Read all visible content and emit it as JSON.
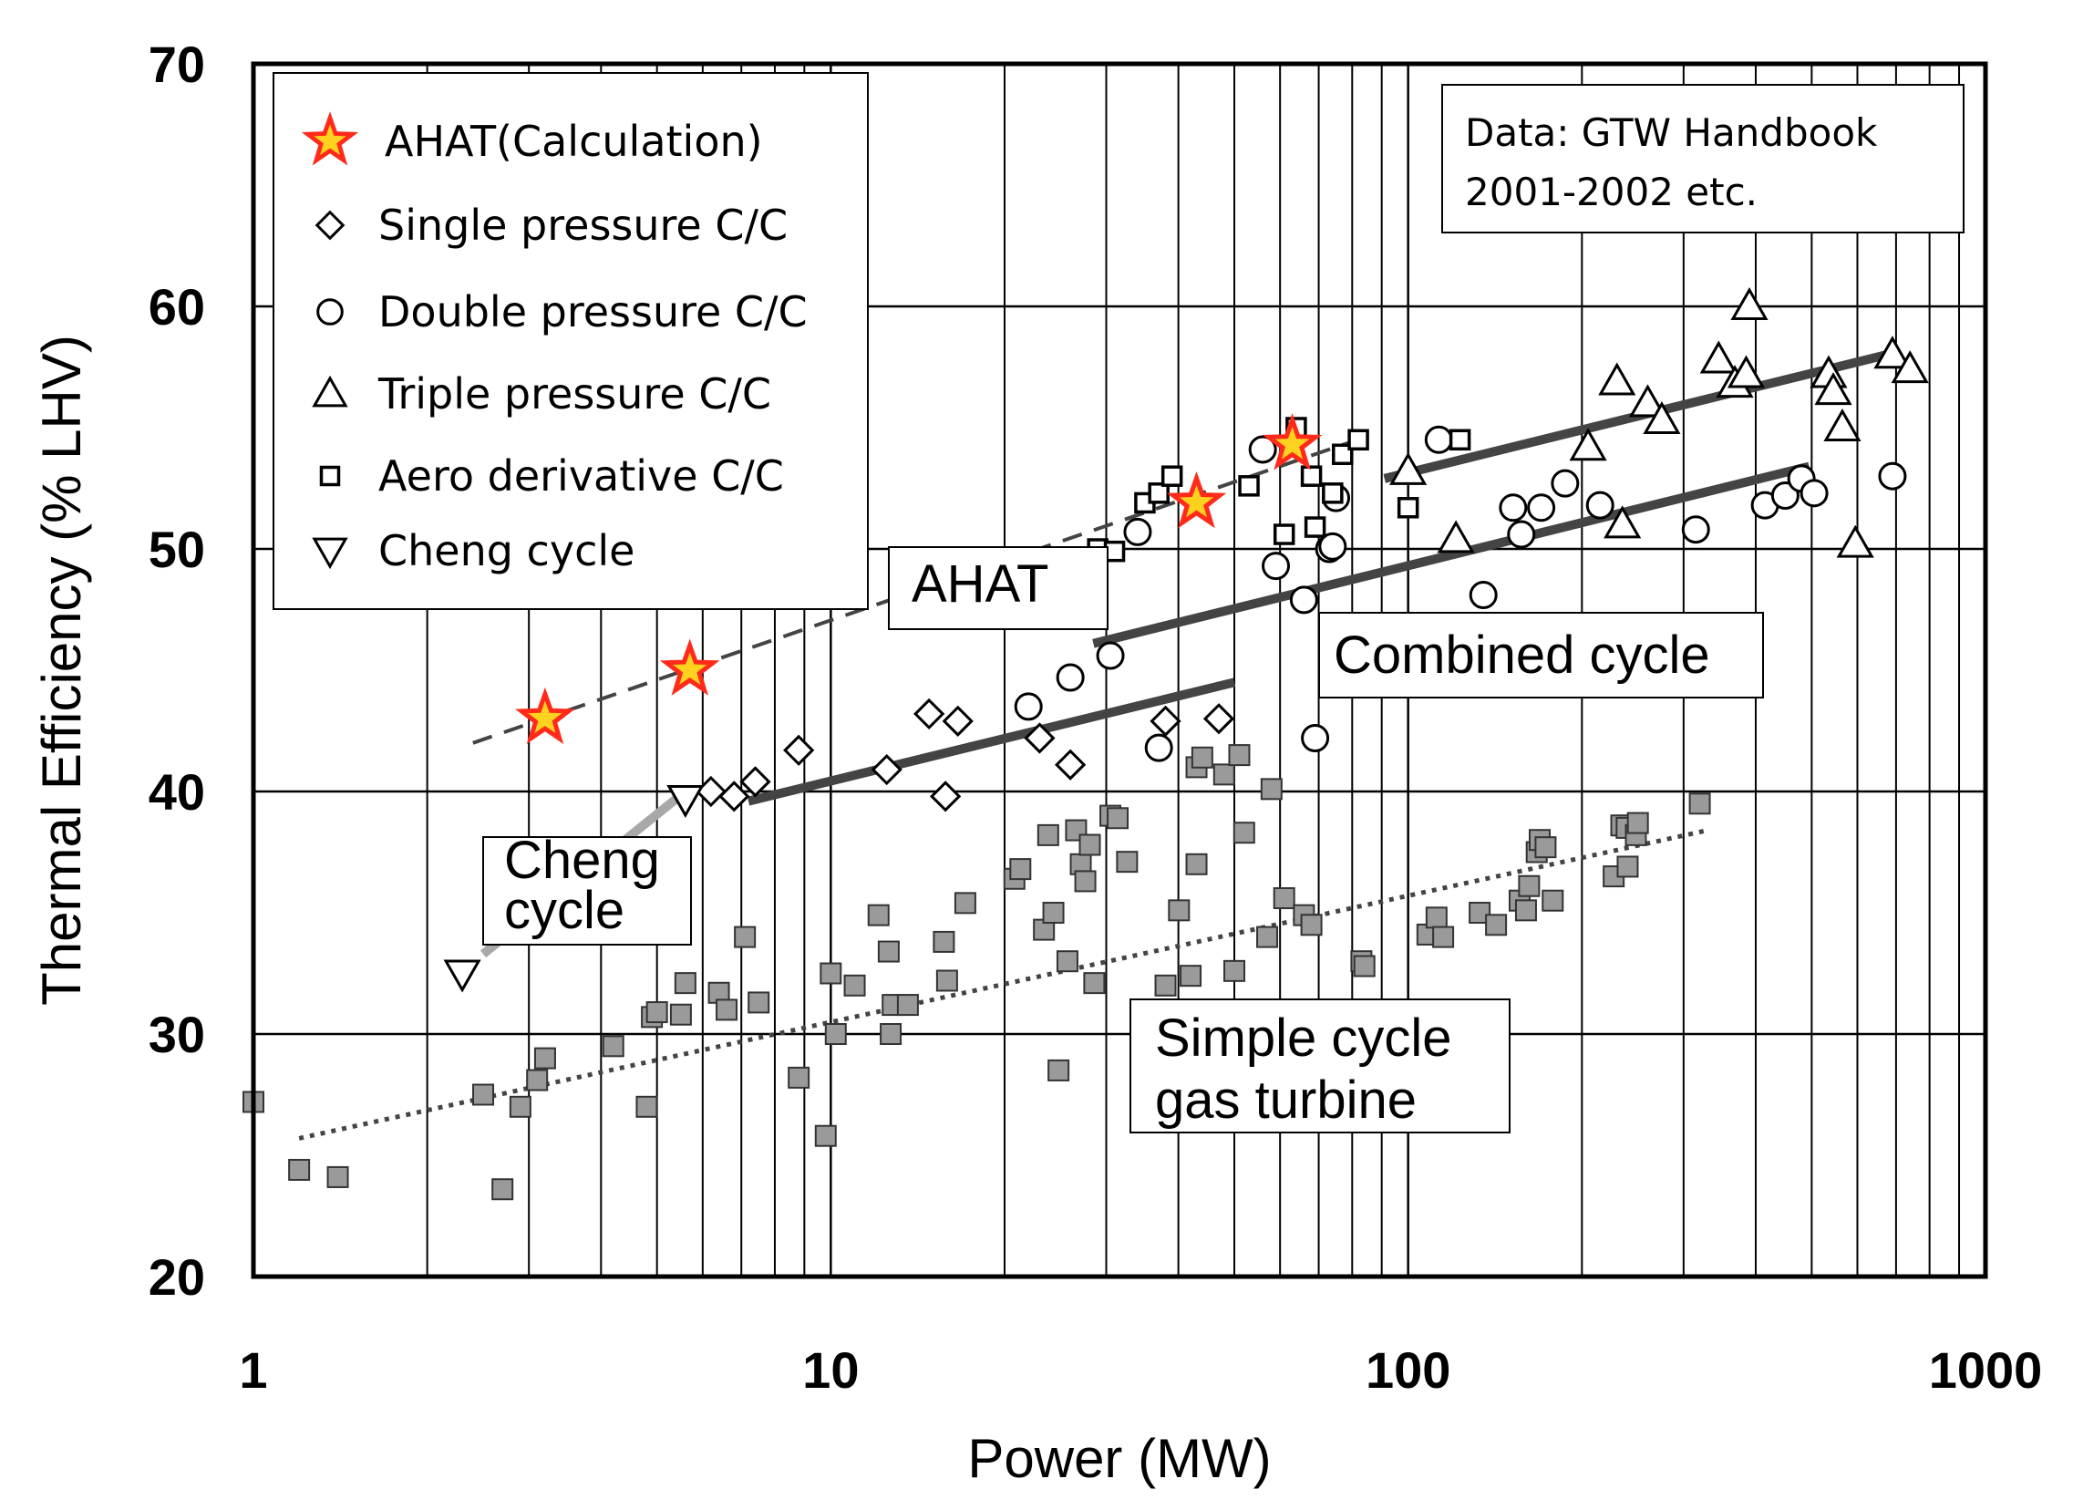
{
  "chart_data": {
    "type": "scatter",
    "xscale": "log",
    "xlim": [
      1,
      1000
    ],
    "ylim": [
      20,
      70
    ],
    "xlabel": "Power (MW)",
    "ylabel": "Thermal  Efficiency (% LHV)",
    "x_ticks": [
      1,
      10,
      100,
      1000
    ],
    "y_ticks": [
      20,
      30,
      40,
      50,
      60,
      70
    ],
    "x_tick_labels": [
      "1",
      "10",
      "100",
      "1000"
    ],
    "y_tick_labels": [
      "20",
      "30",
      "40",
      "50",
      "60",
      "70"
    ],
    "grid": true,
    "legend_position": "top-left",
    "legend": [
      {
        "name": "AHAT(Calculation)",
        "marker": "star"
      },
      {
        "name": "Single pressure C/C",
        "marker": "diamond"
      },
      {
        "name": "Double pressure C/C",
        "marker": "circle"
      },
      {
        "name": "Triple pressure C/C",
        "marker": "triangle-up"
      },
      {
        "name": "Aero derivative C/C",
        "marker": "square-open"
      },
      {
        "name": "Cheng cycle",
        "marker": "triangle-down"
      }
    ],
    "source_note": [
      "Data: GTW Handbook",
      "2001-2002 etc."
    ],
    "series": [
      {
        "name": "AHAT(Calculation)",
        "marker": "star",
        "color": "#ff2a1a",
        "fill2": "#ffd21f",
        "points": [
          [
            3.2,
            43.0
          ],
          [
            5.7,
            45.0
          ],
          [
            43,
            51.9
          ],
          [
            63,
            54.3
          ]
        ]
      },
      {
        "name": "Single pressure C/C",
        "marker": "diamond",
        "points": [
          [
            6.2,
            40.0
          ],
          [
            6.8,
            39.8
          ],
          [
            7.4,
            40.4
          ],
          [
            8.8,
            41.7
          ],
          [
            12.5,
            40.9
          ],
          [
            14.8,
            43.2
          ],
          [
            15.8,
            39.8
          ],
          [
            16.6,
            42.9
          ],
          [
            23,
            42.2
          ],
          [
            26,
            41.1
          ],
          [
            38,
            42.9
          ],
          [
            47,
            43.0
          ]
        ]
      },
      {
        "name": "Double pressure C/C",
        "marker": "circle",
        "points": [
          [
            22,
            43.5
          ],
          [
            26,
            44.7
          ],
          [
            30.5,
            45.6
          ],
          [
            34,
            50.7
          ],
          [
            37,
            41.8
          ],
          [
            56,
            54.1
          ],
          [
            59,
            49.3
          ],
          [
            66,
            47.9
          ],
          [
            69,
            42.2
          ],
          [
            73,
            50.0
          ],
          [
            74,
            50.1
          ],
          [
            75,
            52.1
          ],
          [
            113,
            54.5
          ],
          [
            135,
            48.1
          ],
          [
            152,
            51.7
          ],
          [
            157,
            50.6
          ],
          [
            170,
            51.7
          ],
          [
            187,
            52.7
          ],
          [
            215,
            51.8
          ],
          [
            315,
            50.8
          ],
          [
            415,
            51.8
          ],
          [
            450,
            52.2
          ],
          [
            480,
            52.9
          ],
          [
            505,
            52.3
          ],
          [
            690,
            53.0
          ]
        ]
      },
      {
        "name": "Triple pressure C/C",
        "marker": "triangle-up",
        "points": [
          [
            100,
            53.2
          ],
          [
            121,
            50.4
          ],
          [
            205,
            54.2
          ],
          [
            230,
            56.9
          ],
          [
            235,
            51.0
          ],
          [
            260,
            56.0
          ],
          [
            275,
            55.3
          ],
          [
            345,
            57.8
          ],
          [
            368,
            56.8
          ],
          [
            385,
            57.2
          ],
          [
            390,
            60.0
          ],
          [
            535,
            57.2
          ],
          [
            545,
            56.5
          ],
          [
            565,
            55.0
          ],
          [
            595,
            50.2
          ],
          [
            690,
            58.0
          ],
          [
            740,
            57.4
          ]
        ]
      },
      {
        "name": "Aero derivative C/C",
        "marker": "square-open",
        "points": [
          [
            29,
            50.0
          ],
          [
            31,
            49.9
          ],
          [
            35,
            51.9
          ],
          [
            37,
            52.3
          ],
          [
            39,
            53.0
          ],
          [
            53,
            52.6
          ],
          [
            61,
            50.6
          ],
          [
            64,
            55.0
          ],
          [
            68,
            53.0
          ],
          [
            69,
            50.9
          ],
          [
            74,
            52.3
          ],
          [
            77,
            53.9
          ],
          [
            82,
            54.5
          ],
          [
            100,
            51.7
          ],
          [
            123,
            54.5
          ]
        ]
      },
      {
        "name": "Cheng cycle",
        "marker": "triangle-down",
        "points": [
          [
            2.3,
            32.5
          ],
          [
            5.6,
            39.7
          ]
        ]
      },
      {
        "name": "Simple cycle gas turbine",
        "marker": "square-filled",
        "points": [
          [
            1.0,
            27.2
          ],
          [
            1.2,
            24.4
          ],
          [
            1.4,
            24.1
          ],
          [
            2.5,
            27.5
          ],
          [
            2.7,
            23.6
          ],
          [
            2.9,
            27.0
          ],
          [
            3.1,
            28.1
          ],
          [
            3.2,
            29.0
          ],
          [
            4.2,
            29.5
          ],
          [
            4.8,
            27.0
          ],
          [
            4.9,
            30.7
          ],
          [
            5.0,
            30.9
          ],
          [
            5.5,
            30.8
          ],
          [
            5.6,
            32.1
          ],
          [
            6.4,
            31.7
          ],
          [
            6.6,
            31.0
          ],
          [
            7.1,
            34.0
          ],
          [
            7.5,
            31.3
          ],
          [
            8.8,
            28.2
          ],
          [
            9.8,
            25.8
          ],
          [
            10.0,
            32.5
          ],
          [
            10.2,
            30.0
          ],
          [
            11.0,
            32.0
          ],
          [
            12.1,
            34.9
          ],
          [
            12.6,
            33.4
          ],
          [
            12.7,
            30.0
          ],
          [
            12.8,
            31.2
          ],
          [
            13.6,
            31.2
          ],
          [
            15.7,
            33.8
          ],
          [
            15.9,
            32.2
          ],
          [
            17.1,
            35.4
          ],
          [
            20.8,
            36.4
          ],
          [
            21.3,
            36.8
          ],
          [
            23.4,
            34.3
          ],
          [
            23.8,
            38.2
          ],
          [
            24.3,
            35.0
          ],
          [
            24.8,
            28.5
          ],
          [
            25.7,
            33.0
          ],
          [
            26.6,
            38.4
          ],
          [
            27.1,
            37.0
          ],
          [
            27.6,
            36.3
          ],
          [
            28.1,
            37.8
          ],
          [
            28.6,
            32.1
          ],
          [
            30.5,
            39.0
          ],
          [
            31.4,
            38.9
          ],
          [
            32.6,
            37.1
          ],
          [
            38.0,
            32.0
          ],
          [
            40.1,
            35.1
          ],
          [
            42.0,
            32.4
          ],
          [
            43.0,
            41.0
          ],
          [
            43.0,
            37.0
          ],
          [
            44.0,
            41.4
          ],
          [
            48.0,
            40.7
          ],
          [
            50.0,
            32.6
          ],
          [
            51.0,
            41.5
          ],
          [
            52.0,
            38.3
          ],
          [
            57.0,
            34.0
          ],
          [
            58.0,
            40.1
          ],
          [
            61.0,
            35.6
          ],
          [
            66.0,
            34.9
          ],
          [
            68.0,
            34.5
          ],
          [
            83.0,
            33.0
          ],
          [
            84.0,
            32.8
          ],
          [
            108,
            34.1
          ],
          [
            112,
            34.8
          ],
          [
            115,
            34.0
          ],
          [
            133,
            35.0
          ],
          [
            142,
            34.5
          ],
          [
            156,
            35.5
          ],
          [
            160,
            35.1
          ],
          [
            162,
            36.1
          ],
          [
            167,
            37.5
          ],
          [
            169,
            38.0
          ],
          [
            173,
            37.7
          ],
          [
            178,
            35.5
          ],
          [
            227,
            36.5
          ],
          [
            234,
            38.6
          ],
          [
            239,
            38.5
          ],
          [
            240,
            36.9
          ],
          [
            248,
            38.2
          ],
          [
            250,
            38.7
          ],
          [
            320,
            39.5
          ]
        ]
      }
    ],
    "trend_lines": [
      {
        "name": "AHAT",
        "style": "dashed",
        "color": "#444444",
        "from": [
          2.4,
          42.0
        ],
        "to": [
          84,
          54.6
        ]
      },
      {
        "name": "Combined cycle (low)",
        "style": "solid",
        "color": "#444444",
        "from": [
          7.2,
          39.6
        ],
        "to": [
          50,
          44.5
        ]
      },
      {
        "name": "Combined cycle (mid)",
        "style": "solid",
        "color": "#444444",
        "from": [
          28.5,
          46.1
        ],
        "to": [
          495,
          53.4
        ]
      },
      {
        "name": "Combined cycle (high)",
        "style": "solid",
        "color": "#444444",
        "from": [
          91,
          52.9
        ],
        "to": [
          700,
          58.1
        ]
      },
      {
        "name": "Cheng cycle",
        "style": "solid",
        "color": "#a8a8a8",
        "from": [
          2.5,
          33.3
        ],
        "to": [
          5.6,
          40.0
        ]
      },
      {
        "name": "Simple cycle gas turbine",
        "style": "dotted",
        "color": "#444444",
        "from": [
          1.2,
          25.7
        ],
        "to": [
          330,
          38.4
        ]
      }
    ],
    "annotations": [
      {
        "key": "ahat",
        "lines": [
          "AHAT"
        ]
      },
      {
        "key": "combined",
        "lines": [
          "Combined cycle"
        ]
      },
      {
        "key": "cheng",
        "lines": [
          "Cheng",
          "cycle"
        ]
      },
      {
        "key": "simple",
        "lines": [
          "Simple cycle",
          "gas turbine"
        ]
      }
    ]
  }
}
